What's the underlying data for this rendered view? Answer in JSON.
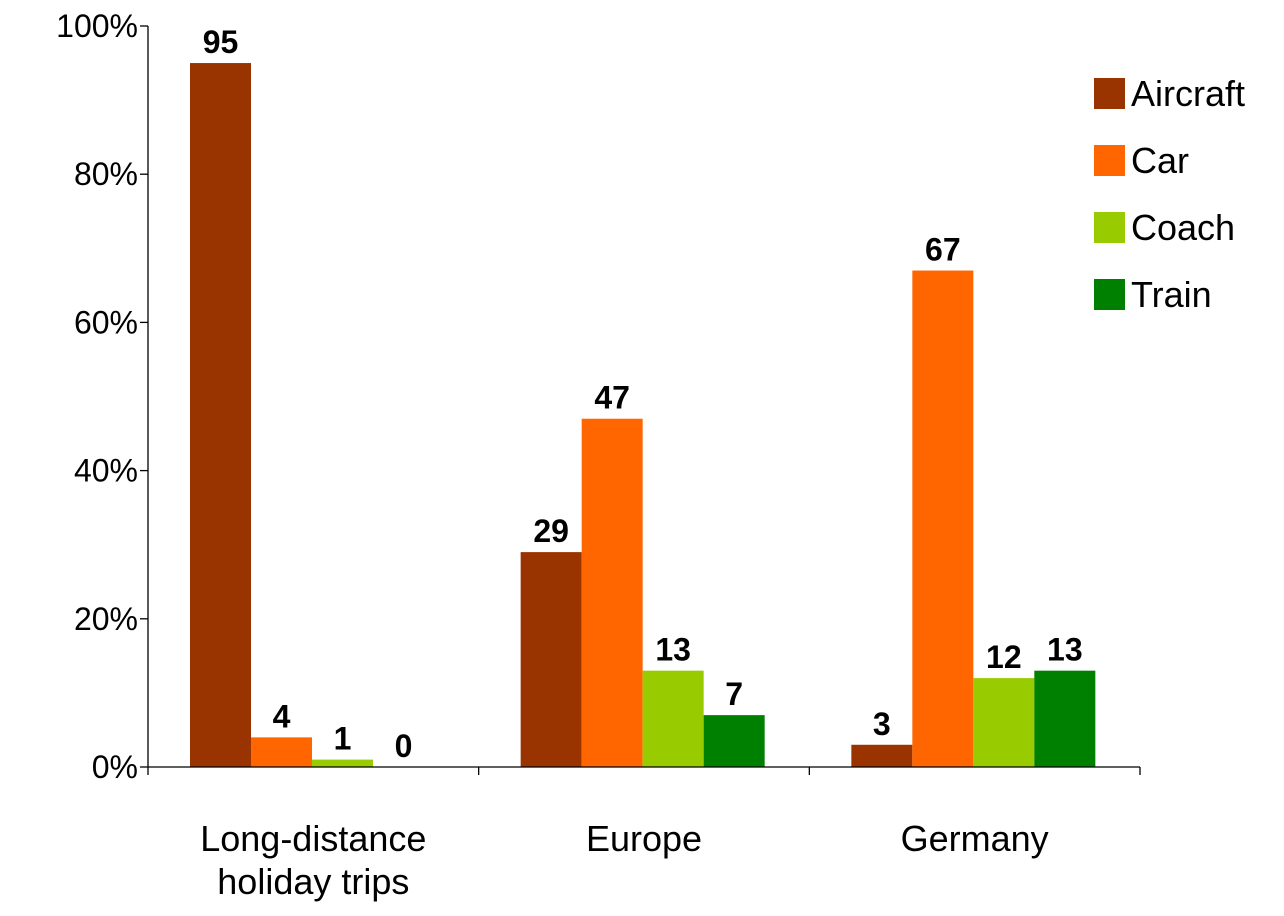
{
  "chart_data": {
    "type": "bar",
    "categories": [
      [
        "Long-distance",
        "holiday trips"
      ],
      [
        "Europe"
      ],
      [
        "Germany"
      ]
    ],
    "series": [
      {
        "name": "Aircraft",
        "color": "#993300",
        "values": [
          95,
          29,
          3
        ]
      },
      {
        "name": "Car",
        "color": "#FF6600",
        "values": [
          4,
          47,
          67
        ]
      },
      {
        "name": "Coach",
        "color": "#99CC00",
        "values": [
          1,
          13,
          12
        ]
      },
      {
        "name": "Train",
        "color": "#008000",
        "values": [
          0,
          7,
          13
        ]
      }
    ],
    "ylim": [
      0,
      100
    ],
    "yticks": [
      0,
      20,
      40,
      60,
      80,
      100
    ],
    "ytick_labels": [
      "0%",
      "20%",
      "40%",
      "60%",
      "80%",
      "100%"
    ],
    "title": "",
    "xlabel": "",
    "ylabel": "",
    "legend_position": "top-right",
    "grid": false,
    "data_labels": true
  }
}
